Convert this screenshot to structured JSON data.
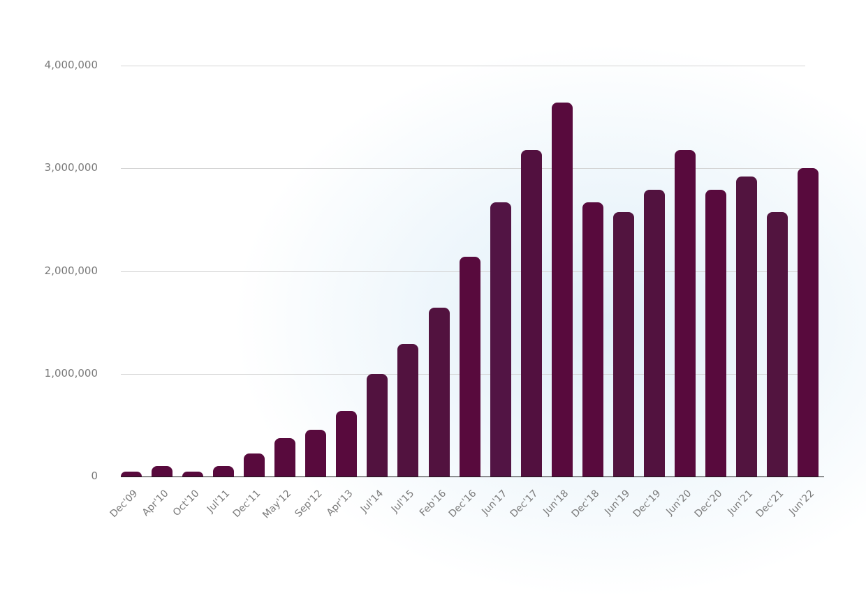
{
  "chart_data": {
    "type": "bar",
    "title": "",
    "xlabel": "",
    "ylabel": "",
    "ylim": [
      0,
      4000000
    ],
    "yticks": [
      0,
      1000000,
      2000000,
      3000000,
      4000000
    ],
    "ytick_labels": [
      "0",
      "1,000,000",
      "2,000,000",
      "3,000,000",
      "4,000,000"
    ],
    "grid": true,
    "legend": null,
    "categories": [
      "Dec'09",
      "Apr'10",
      "Oct'10",
      "Jul'11",
      "Dec'11",
      "May'12",
      "Sep'12",
      "Apr'13",
      "Jul'14",
      "Jul'15",
      "Feb'16",
      "Dec'16",
      "Jun'17",
      "Dec'17",
      "Jun'18",
      "Dec'18",
      "Jun'19",
      "Dec'19",
      "Jun'20",
      "Dec'20",
      "Jun'21",
      "Dec'21",
      "Jun'22"
    ],
    "values": [
      50000,
      100000,
      50000,
      100000,
      225000,
      375000,
      455000,
      640000,
      1000000,
      1290000,
      1645000,
      2140000,
      2670000,
      3180000,
      3640000,
      2670000,
      2575000,
      2790000,
      3180000,
      2790000,
      2920000,
      2575000,
      3000000
    ],
    "colors": [
      "#580a3d",
      "#580a3d",
      "#580a3d",
      "#580a3d",
      "#580a3d",
      "#580a3d",
      "#580a3d",
      "#580a3d",
      "#52123f",
      "#52123f",
      "#52123f",
      "#580a3d",
      "#521444",
      "#52103f",
      "#580a3d",
      "#580a3d",
      "#52143f",
      "#52123f",
      "#580a3d",
      "#580a3d",
      "#52143f",
      "#52143f",
      "#580a3d"
    ]
  },
  "style": {
    "bar_color": "#580a3d",
    "grid_color": "#d4d4d4",
    "tick_color": "#7a7a7a",
    "axis_color": "#1a1a1a"
  }
}
